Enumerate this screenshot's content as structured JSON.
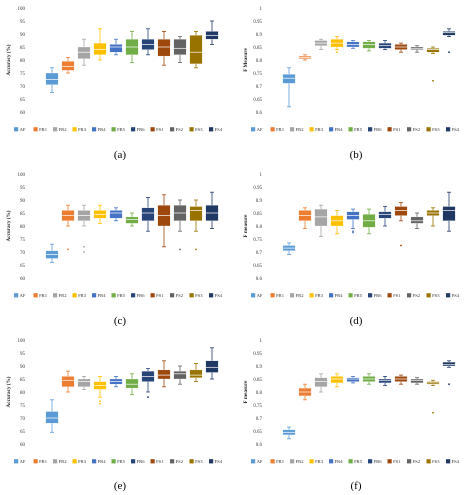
{
  "figure": {
    "captions": [
      "(a)",
      "(b)",
      "(c)",
      "(d)",
      "(e)",
      "(f)"
    ]
  },
  "legend_labels": [
    "AF",
    "FR1",
    "FR2",
    "FR3",
    "FR4",
    "FR5",
    "FR6",
    "FS1",
    "FS2",
    "FS3",
    "FS4"
  ],
  "series_colors": [
    "#5b9bd5",
    "#ed7d31",
    "#a5a5a5",
    "#ffc000",
    "#4472c4",
    "#70ad47",
    "#264478",
    "#9e480e",
    "#636363",
    "#997300",
    "#203864"
  ],
  "chart_data": [
    {
      "type": "box",
      "panel": "a",
      "ylabel": "Accuracy (%)",
      "ylim": [
        60,
        100
      ],
      "yticks": [
        60,
        65,
        70,
        75,
        80,
        85,
        90,
        95,
        100
      ],
      "categories": [
        "AF",
        "FR1",
        "FR2",
        "FR3",
        "FR4",
        "FR5",
        "FR6",
        "FS1",
        "FS2",
        "FS3",
        "FS4"
      ],
      "boxes": [
        {
          "min": 67.5,
          "q1": 70.5,
          "median": 72.5,
          "q3": 75,
          "max": 77
        },
        {
          "min": 75,
          "q1": 76,
          "median": 77.5,
          "q3": 79.5,
          "max": 81
        },
        {
          "min": 78,
          "q1": 80.5,
          "median": 83,
          "q3": 85,
          "max": 88
        },
        {
          "min": 80,
          "q1": 82,
          "median": 84,
          "q3": 86.5,
          "max": 92
        },
        {
          "min": 82,
          "q1": 83,
          "median": 85,
          "q3": 86,
          "max": 88
        },
        {
          "min": 79,
          "q1": 82,
          "median": 85,
          "q3": 88,
          "max": 91
        },
        {
          "min": 82,
          "q1": 84,
          "median": 86,
          "q3": 88,
          "max": 92
        },
        {
          "min": 78,
          "q1": 81.5,
          "median": 85,
          "q3": 88,
          "max": 91
        },
        {
          "min": 79,
          "q1": 82,
          "median": 84.5,
          "q3": 88,
          "max": 89
        },
        {
          "min": 77,
          "q1": 78.5,
          "median": 83,
          "q3": 89.5,
          "max": 91
        },
        {
          "min": 86,
          "q1": 88,
          "median": 89.5,
          "q3": 91,
          "max": 95
        }
      ],
      "outliers": []
    },
    {
      "type": "box",
      "panel": "b",
      "ylabel": "F Measure",
      "ylim": [
        0.6,
        1
      ],
      "yticks": [
        0.6,
        0.65,
        0.7,
        0.75,
        0.8,
        0.85,
        0.9,
        0.95,
        1
      ],
      "categories": [
        "AF",
        "FR1",
        "FR2",
        "FR3",
        "FR4",
        "FR5",
        "FR6",
        "FS1",
        "FS2",
        "FS3",
        "FS4"
      ],
      "boxes": [
        {
          "min": 0.62,
          "q1": 0.71,
          "median": 0.73,
          "q3": 0.745,
          "max": 0.77
        },
        {
          "min": 0.8,
          "q1": 0.805,
          "median": 0.81,
          "q3": 0.815,
          "max": 0.82
        },
        {
          "min": 0.84,
          "q1": 0.855,
          "median": 0.865,
          "q3": 0.875,
          "max": 0.88
        },
        {
          "min": 0.84,
          "q1": 0.85,
          "median": 0.865,
          "q3": 0.88,
          "max": 0.89
        },
        {
          "min": 0.845,
          "q1": 0.85,
          "median": 0.86,
          "q3": 0.87,
          "max": 0.875
        },
        {
          "min": 0.835,
          "q1": 0.845,
          "median": 0.86,
          "q3": 0.87,
          "max": 0.875
        },
        {
          "min": 0.84,
          "q1": 0.845,
          "median": 0.855,
          "q3": 0.865,
          "max": 0.875
        },
        {
          "min": 0.83,
          "q1": 0.84,
          "median": 0.85,
          "q3": 0.86,
          "max": 0.865
        },
        {
          "min": 0.83,
          "q1": 0.84,
          "median": 0.845,
          "q3": 0.85,
          "max": 0.855
        },
        {
          "min": 0.825,
          "q1": 0.83,
          "median": 0.84,
          "q3": 0.845,
          "max": 0.85
        },
        {
          "min": 0.89,
          "q1": 0.895,
          "median": 0.905,
          "q3": 0.91,
          "max": 0.92
        }
      ],
      "outliers": [
        {
          "index": 3,
          "value": 0.83
        },
        {
          "index": 9,
          "value": 0.72
        },
        {
          "index": 10,
          "value": 0.83
        }
      ]
    },
    {
      "type": "box",
      "panel": "c",
      "ylabel": "Accuracy (%)",
      "ylim": [
        60,
        100
      ],
      "yticks": [
        60,
        65,
        70,
        75,
        80,
        85,
        90,
        95,
        100
      ],
      "categories": [
        "AF",
        "FR1",
        "FR2",
        "FR3",
        "FR4",
        "FR5",
        "FR6",
        "FS1",
        "FS2",
        "FS3",
        "FS4"
      ],
      "boxes": [
        {
          "min": 66,
          "q1": 67.5,
          "median": 69,
          "q3": 70.5,
          "max": 73
        },
        {
          "min": 80,
          "q1": 82,
          "median": 84,
          "q3": 86,
          "max": 88
        },
        {
          "min": 80,
          "q1": 82,
          "median": 84,
          "q3": 86,
          "max": 88
        },
        {
          "min": 81,
          "q1": 83,
          "median": 84.5,
          "q3": 86,
          "max": 88
        },
        {
          "min": 82,
          "q1": 83,
          "median": 85,
          "q3": 86,
          "max": 87
        },
        {
          "min": 80,
          "q1": 81,
          "median": 82.5,
          "q3": 83.5,
          "max": 85
        },
        {
          "min": 78,
          "q1": 82,
          "median": 85,
          "q3": 87,
          "max": 91
        },
        {
          "min": 72,
          "q1": 80,
          "median": 84,
          "q3": 88,
          "max": 92
        },
        {
          "min": 78,
          "q1": 82,
          "median": 85,
          "q3": 88,
          "max": 90
        },
        {
          "min": 78,
          "q1": 82,
          "median": 86,
          "q3": 87.5,
          "max": 90
        },
        {
          "min": 79,
          "q1": 82,
          "median": 85,
          "q3": 88,
          "max": 93
        }
      ],
      "outliers": [
        {
          "index": 1,
          "value": 71
        },
        {
          "index": 2,
          "value": 70
        },
        {
          "index": 2,
          "value": 72
        },
        {
          "index": 8,
          "value": 71
        },
        {
          "index": 9,
          "value": 71
        }
      ]
    },
    {
      "type": "box",
      "panel": "d",
      "ylabel": "F measure",
      "ylim": [
        0.6,
        1
      ],
      "yticks": [
        0.6,
        0.65,
        0.7,
        0.75,
        0.8,
        0.85,
        0.9,
        0.95,
        1
      ],
      "categories": [
        "AF",
        "FR1",
        "FR2",
        "FR3",
        "FR4",
        "FR5",
        "FR6",
        "FS1",
        "FS2",
        "FS3",
        "FS4"
      ],
      "boxes": [
        {
          "min": 0.69,
          "q1": 0.705,
          "median": 0.715,
          "q3": 0.725,
          "max": 0.735
        },
        {
          "min": 0.79,
          "q1": 0.82,
          "median": 0.84,
          "q3": 0.86,
          "max": 0.87
        },
        {
          "min": 0.76,
          "q1": 0.8,
          "median": 0.835,
          "q3": 0.865,
          "max": 0.88
        },
        {
          "min": 0.77,
          "q1": 0.8,
          "median": 0.82,
          "q3": 0.84,
          "max": 0.86
        },
        {
          "min": 0.79,
          "q1": 0.825,
          "median": 0.84,
          "q3": 0.855,
          "max": 0.865
        },
        {
          "min": 0.77,
          "q1": 0.795,
          "median": 0.82,
          "q3": 0.845,
          "max": 0.865
        },
        {
          "min": 0.8,
          "q1": 0.83,
          "median": 0.845,
          "q3": 0.855,
          "max": 0.875
        },
        {
          "min": 0.82,
          "q1": 0.84,
          "median": 0.86,
          "q3": 0.875,
          "max": 0.89
        },
        {
          "min": 0.79,
          "q1": 0.81,
          "median": 0.82,
          "q3": 0.835,
          "max": 0.85
        },
        {
          "min": 0.8,
          "q1": 0.84,
          "median": 0.85,
          "q3": 0.86,
          "max": 0.87
        },
        {
          "min": 0.78,
          "q1": 0.82,
          "median": 0.86,
          "q3": 0.875,
          "max": 0.93
        }
      ],
      "outliers": [
        {
          "index": 4,
          "value": 0.78
        },
        {
          "index": 4,
          "value": 0.775
        },
        {
          "index": 7,
          "value": 0.725
        }
      ]
    },
    {
      "type": "box",
      "panel": "e",
      "ylabel": "Accuracy (%)",
      "ylim": [
        60,
        100
      ],
      "yticks": [
        60,
        65,
        70,
        75,
        80,
        85,
        90,
        95,
        100
      ],
      "categories": [
        "AF",
        "FR1",
        "FR2",
        "FR3",
        "FR4",
        "FR5",
        "FR6",
        "FS1",
        "FS2",
        "FS3",
        "FS4"
      ],
      "boxes": [
        {
          "min": 64.5,
          "q1": 68,
          "median": 70,
          "q3": 72.5,
          "max": 77
        },
        {
          "min": 80,
          "q1": 82,
          "median": 84.5,
          "q3": 86,
          "max": 88
        },
        {
          "min": 81,
          "q1": 82,
          "median": 84,
          "q3": 85,
          "max": 86
        },
        {
          "min": 78,
          "q1": 81,
          "median": 82.5,
          "q3": 84,
          "max": 86
        },
        {
          "min": 82,
          "q1": 83,
          "median": 84,
          "q3": 85,
          "max": 86
        },
        {
          "min": 79,
          "q1": 81.5,
          "median": 83,
          "q3": 85,
          "max": 87
        },
        {
          "min": 80,
          "q1": 84,
          "median": 86,
          "q3": 88,
          "max": 89
        },
        {
          "min": 82,
          "q1": 85,
          "median": 86.5,
          "q3": 88.5,
          "max": 92
        },
        {
          "min": 83,
          "q1": 85,
          "median": 87,
          "q3": 88,
          "max": 90
        },
        {
          "min": 84,
          "q1": 85.5,
          "median": 86.5,
          "q3": 88.5,
          "max": 91
        },
        {
          "min": 85,
          "q1": 87.5,
          "median": 89.5,
          "q3": 92,
          "max": 97
        }
      ],
      "outliers": [
        {
          "index": 3,
          "value": 75.5
        },
        {
          "index": 3,
          "value": 76.5
        },
        {
          "index": 6,
          "value": 78
        }
      ]
    },
    {
      "type": "box",
      "panel": "f",
      "ylabel": "F measure",
      "ylim": [
        0.6,
        1
      ],
      "yticks": [
        0.6,
        0.65,
        0.7,
        0.75,
        0.8,
        0.85,
        0.9,
        0.95,
        1
      ],
      "categories": [
        "AF",
        "FR1",
        "FR2",
        "FR3",
        "FR4",
        "FR5",
        "FR6",
        "FS1",
        "FS2",
        "FS3",
        "FS4"
      ],
      "boxes": [
        {
          "min": 0.62,
          "q1": 0.635,
          "median": 0.645,
          "q3": 0.655,
          "max": 0.665
        },
        {
          "min": 0.77,
          "q1": 0.785,
          "median": 0.8,
          "q3": 0.815,
          "max": 0.83
        },
        {
          "min": 0.8,
          "q1": 0.82,
          "median": 0.84,
          "q3": 0.855,
          "max": 0.87
        },
        {
          "min": 0.82,
          "q1": 0.835,
          "median": 0.85,
          "q3": 0.86,
          "max": 0.87
        },
        {
          "min": 0.835,
          "q1": 0.84,
          "median": 0.85,
          "q3": 0.855,
          "max": 0.86
        },
        {
          "min": 0.83,
          "q1": 0.84,
          "median": 0.85,
          "q3": 0.86,
          "max": 0.87
        },
        {
          "min": 0.825,
          "q1": 0.835,
          "median": 0.845,
          "q3": 0.85,
          "max": 0.86
        },
        {
          "min": 0.83,
          "q1": 0.84,
          "median": 0.85,
          "q3": 0.86,
          "max": 0.865
        },
        {
          "min": 0.83,
          "q1": 0.835,
          "median": 0.845,
          "q3": 0.85,
          "max": 0.855
        },
        {
          "min": 0.825,
          "q1": 0.83,
          "median": 0.835,
          "q3": 0.84,
          "max": 0.845
        },
        {
          "min": 0.895,
          "q1": 0.9,
          "median": 0.905,
          "q3": 0.915,
          "max": 0.92
        }
      ],
      "outliers": [
        {
          "index": 9,
          "value": 0.72
        },
        {
          "index": 10,
          "value": 0.83
        }
      ]
    }
  ]
}
